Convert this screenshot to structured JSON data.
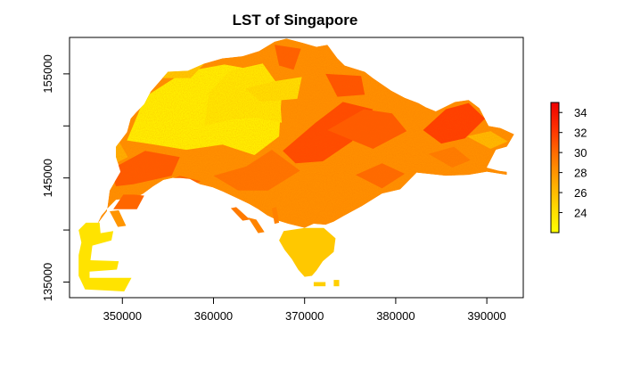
{
  "chart_data": {
    "type": "heatmap",
    "title": "LST of Singapore",
    "xlabel": "",
    "ylabel": "",
    "xlim": [
      344200,
      394000
    ],
    "ylim": [
      133500,
      158500
    ],
    "x_ticks": [
      {
        "value": 350000,
        "label": "350000"
      },
      {
        "value": 360000,
        "label": "360000"
      },
      {
        "value": 370000,
        "label": "370000"
      },
      {
        "value": 380000,
        "label": "380000"
      },
      {
        "value": 390000,
        "label": "390000"
      }
    ],
    "y_ticks": [
      {
        "value": 135000,
        "label": "135000",
        "labeled": true
      },
      {
        "value": 140000,
        "label": "",
        "labeled": false
      },
      {
        "value": 145000,
        "label": "145000",
        "labeled": true
      },
      {
        "value": 150000,
        "label": "",
        "labeled": false
      },
      {
        "value": 155000,
        "label": "155000",
        "labeled": true
      }
    ],
    "legend": {
      "placement": "right",
      "range": [
        22,
        35
      ],
      "ticks": [
        {
          "value": 24,
          "label": "24"
        },
        {
          "value": 26,
          "label": "26"
        },
        {
          "value": 28,
          "label": "28"
        },
        {
          "value": 30,
          "label": "30"
        },
        {
          "value": 32,
          "label": "32"
        },
        {
          "value": 34,
          "label": "34"
        }
      ],
      "colors": [
        "#ffff00",
        "#ffd700",
        "#ffa500",
        "#ff7000",
        "#ff3000",
        "#ee0000"
      ]
    },
    "regions": [
      {
        "name": "main-island",
        "outline": [
          [
            347200,
            140500
          ],
          [
            348300,
            141800
          ],
          [
            348600,
            143800
          ],
          [
            349800,
            145600
          ],
          [
            349300,
            147000
          ],
          [
            349300,
            148000
          ],
          [
            350500,
            149400
          ],
          [
            350900,
            150700
          ],
          [
            351500,
            151300
          ],
          [
            352400,
            152100
          ],
          [
            353100,
            153300
          ],
          [
            354000,
            154200
          ],
          [
            355000,
            155200
          ],
          [
            357200,
            155300
          ],
          [
            359000,
            156000
          ],
          [
            361000,
            156500
          ],
          [
            363200,
            156700
          ],
          [
            365000,
            157200
          ],
          [
            366700,
            158100
          ],
          [
            368000,
            158400
          ],
          [
            369700,
            158000
          ],
          [
            371300,
            157600
          ],
          [
            372500,
            157800
          ],
          [
            373600,
            156500
          ],
          [
            374400,
            155800
          ],
          [
            376600,
            155200
          ],
          [
            377500,
            154600
          ],
          [
            379500,
            153400
          ],
          [
            381000,
            152700
          ],
          [
            382500,
            152200
          ],
          [
            383300,
            151800
          ],
          [
            384400,
            151400
          ],
          [
            386500,
            152300
          ],
          [
            388000,
            152500
          ],
          [
            389200,
            151700
          ],
          [
            390200,
            150000
          ],
          [
            391500,
            149800
          ],
          [
            393000,
            149200
          ],
          [
            392200,
            148000
          ],
          [
            391000,
            147700
          ],
          [
            390000,
            146000
          ],
          [
            391300,
            145700
          ],
          [
            392200,
            145600
          ],
          [
            392200,
            145300
          ],
          [
            390000,
            145600
          ],
          [
            388000,
            145300
          ],
          [
            385500,
            145200
          ],
          [
            382300,
            145500
          ],
          [
            380500,
            143900
          ],
          [
            378500,
            143500
          ],
          [
            376300,
            142300
          ],
          [
            374200,
            141300
          ],
          [
            373200,
            140800
          ],
          [
            372300,
            140500
          ],
          [
            371000,
            140600
          ],
          [
            370000,
            140200
          ],
          [
            368200,
            140600
          ],
          [
            367100,
            140900
          ],
          [
            365900,
            141400
          ],
          [
            364900,
            142000
          ],
          [
            363900,
            142500
          ],
          [
            362700,
            143000
          ],
          [
            361000,
            143700
          ],
          [
            359900,
            144100
          ],
          [
            358500,
            144400
          ],
          [
            357400,
            144900
          ],
          [
            356400,
            145000
          ],
          [
            355500,
            145000
          ],
          [
            354500,
            144800
          ],
          [
            353400,
            144200
          ],
          [
            352300,
            143500
          ],
          [
            351300,
            143000
          ],
          [
            350400,
            143000
          ],
          [
            349300,
            142900
          ],
          [
            348400,
            142100
          ],
          [
            347700,
            141400
          ]
        ],
        "zones": [
          {
            "outline": [
              [
                350500,
                148600
              ],
              [
                352500,
                152800
              ],
              [
                356800,
                155200
              ],
              [
                361200,
                155900
              ],
              [
                365000,
                155300
              ],
              [
                367500,
                153300
              ],
              [
                367200,
                149000
              ],
              [
                364500,
                147200
              ],
              [
                361000,
                148200
              ],
              [
                357000,
                147700
              ],
              [
                353500,
                148200
              ]
            ],
            "value": 23.2
          },
          {
            "outline": [
              [
                359000,
                150000
              ],
              [
                362000,
                150600
              ],
              [
                364500,
                150800
              ],
              [
                367500,
                150300
              ],
              [
                367200,
                153800
              ],
              [
                365400,
                156000
              ],
              [
                361800,
                155300
              ],
              [
                359500,
                153200
              ]
            ],
            "value": 23.6
          },
          {
            "outline": [
              [
                363500,
                153600
              ],
              [
                366700,
                154300
              ],
              [
                369700,
                154700
              ],
              [
                369200,
                152600
              ],
              [
                365200,
                152300
              ]
            ],
            "value": 24.2
          },
          {
            "outline": [
              [
                353000,
                154600
              ],
              [
                356000,
                155800
              ],
              [
                359000,
                156000
              ],
              [
                357500,
                154600
              ]
            ],
            "value": 25.5
          },
          {
            "outline": [
              [
                347400,
                147700
              ],
              [
                349700,
                148400
              ],
              [
                350600,
                147000
              ],
              [
                348800,
                146200
              ]
            ],
            "value": 26.8
          },
          {
            "outline": [
              [
                348700,
                145800
              ],
              [
                352500,
                147600
              ],
              [
                356300,
                147000
              ],
              [
                355400,
                145200
              ],
              [
                351200,
                144400
              ],
              [
                349300,
                144200
              ]
            ],
            "value": 30.7
          },
          {
            "outline": [
              [
                353400,
                144200
              ],
              [
                356300,
                145200
              ],
              [
                358600,
                144700
              ],
              [
                356800,
                143800
              ],
              [
                354800,
                143300
              ]
            ],
            "value": 30.2
          },
          {
            "outline": [
              [
                367600,
                147600
              ],
              [
                371200,
                150300
              ],
              [
                374200,
                152300
              ],
              [
                377500,
                151600
              ],
              [
                375200,
                148500
              ],
              [
                372000,
                146600
              ],
              [
                369000,
                146400
              ]
            ],
            "value": 31.3
          },
          {
            "outline": [
              [
                372500,
                149600
              ],
              [
                376500,
                151600
              ],
              [
                379600,
                151200
              ],
              [
                381200,
                149500
              ],
              [
                377500,
                147800
              ]
            ],
            "value": 30.6
          },
          {
            "outline": [
              [
                383000,
                149600
              ],
              [
                385500,
                151600
              ],
              [
                388000,
                152200
              ],
              [
                389800,
                150700
              ],
              [
                387600,
                148800
              ],
              [
                385000,
                148300
              ]
            ],
            "value": 31.8
          },
          {
            "outline": [
              [
                383600,
                147300
              ],
              [
                386400,
                148000
              ],
              [
                388200,
                146700
              ],
              [
                386200,
                146000
              ]
            ],
            "value": 29.2
          },
          {
            "outline": [
              [
                366700,
                157800
              ],
              [
                369600,
                157400
              ],
              [
                368800,
                155400
              ],
              [
                367200,
                155800
              ]
            ],
            "value": 30.4
          },
          {
            "outline": [
              [
                372300,
                155000
              ],
              [
                376200,
                154800
              ],
              [
                376600,
                153000
              ],
              [
                373600,
                152800
              ]
            ],
            "value": 30.9
          },
          {
            "outline": [
              [
                360000,
                145200
              ],
              [
                363600,
                146100
              ],
              [
                366400,
                147700
              ],
              [
                369500,
                145700
              ],
              [
                366000,
                143800
              ],
              [
                362700,
                143800
              ]
            ],
            "value": 29.6
          },
          {
            "outline": [
              [
                375600,
                145300
              ],
              [
                378500,
                146400
              ],
              [
                381000,
                145400
              ],
              [
                378500,
                144000
              ]
            ],
            "value": 30.0
          },
          {
            "outline": [
              [
                387800,
                149000
              ],
              [
                390400,
                149500
              ],
              [
                392300,
                148500
              ],
              [
                390400,
                147800
              ]
            ],
            "value": 26.2
          }
        ]
      },
      {
        "name": "southern-shoreline-island",
        "outline": [
          [
            367700,
            139900
          ],
          [
            370000,
            140200
          ],
          [
            372100,
            140200
          ],
          [
            373400,
            139200
          ],
          [
            373200,
            137900
          ],
          [
            372000,
            137000
          ],
          [
            371300,
            136100
          ],
          [
            370800,
            135600
          ],
          [
            370000,
            135500
          ],
          [
            369300,
            136200
          ],
          [
            368600,
            137200
          ],
          [
            367800,
            138100
          ],
          [
            367200,
            139000
          ]
        ],
        "value": 25.4
      },
      {
        "name": "western-island-cluster",
        "outline": [
          [
            346000,
            140700
          ],
          [
            347500,
            140700
          ],
          [
            347600,
            139700
          ],
          [
            349000,
            139900
          ],
          [
            348800,
            139000
          ],
          [
            346700,
            138500
          ],
          [
            346500,
            137100
          ],
          [
            349600,
            137000
          ],
          [
            349400,
            136200
          ],
          [
            346400,
            136000
          ],
          [
            346400,
            135400
          ],
          [
            351000,
            135400
          ],
          [
            350200,
            134100
          ],
          [
            345900,
            134300
          ],
          [
            345200,
            135600
          ],
          [
            345200,
            137600
          ],
          [
            345500,
            138800
          ],
          [
            345200,
            140000
          ]
        ],
        "value": 23.8
      },
      {
        "name": "jetty-1",
        "outline": [
          [
            371000,
            135000
          ],
          [
            372300,
            135000
          ],
          [
            372300,
            134600
          ],
          [
            371000,
            134600
          ]
        ],
        "value": 25.0
      },
      {
        "name": "jetty-2",
        "outline": [
          [
            373200,
            135200
          ],
          [
            373800,
            135200
          ],
          [
            373800,
            134600
          ],
          [
            373200,
            134600
          ]
        ],
        "value": 25.0
      },
      {
        "name": "pier-a",
        "outline": [
          [
            361900,
            142100
          ],
          [
            362500,
            142200
          ],
          [
            364000,
            141000
          ],
          [
            363200,
            140900
          ]
        ],
        "value": 29.3
      },
      {
        "name": "pier-b",
        "outline": [
          [
            363800,
            141200
          ],
          [
            364700,
            141000
          ],
          [
            365600,
            139800
          ],
          [
            364900,
            139700
          ]
        ],
        "value": 28.8
      },
      {
        "name": "pier-c",
        "outline": [
          [
            366400,
            142100
          ],
          [
            366900,
            142200
          ],
          [
            367200,
            140700
          ],
          [
            366700,
            140600
          ]
        ],
        "value": 29.0
      },
      {
        "name": "pier-d",
        "outline": [
          [
            348600,
            141800
          ],
          [
            349600,
            141900
          ],
          [
            350400,
            140400
          ],
          [
            349500,
            140300
          ]
        ],
        "value": 28.0
      },
      {
        "name": "island-ring-a",
        "outline": [
          [
            349000,
            142000
          ],
          [
            351600,
            142000
          ],
          [
            352400,
            143300
          ],
          [
            351300,
            143400
          ],
          [
            350100,
            143400
          ]
        ],
        "value": 30.2
      }
    ]
  }
}
